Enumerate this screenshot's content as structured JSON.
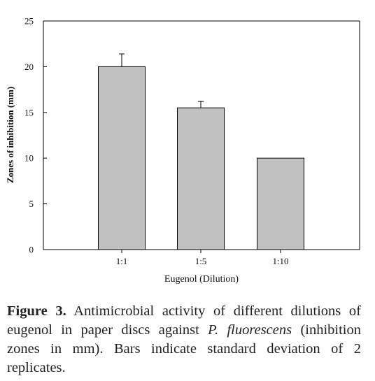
{
  "chart_data": {
    "type": "bar",
    "categories": [
      "1:1",
      "1:5",
      "1:10"
    ],
    "values": [
      20,
      15.5,
      10
    ],
    "error_plus": [
      1.4,
      0.7,
      0
    ],
    "xlabel": "Eugenol (Dilution)",
    "ylabel": "Zones of inhibition (mm)",
    "ylim": [
      0,
      25
    ],
    "yticks": [
      0,
      5,
      10,
      15,
      20,
      25
    ],
    "grid": false,
    "bar_color": "#c0c0c0"
  },
  "caption": {
    "label": "Figure 3.",
    "text_before": " Antimicrobial activity of different dilutions of eugenol in paper discs against ",
    "species": "P. fluorescens",
    "text_after": " (inhibition zones in mm). Bars indicate standard deviation of 2 replicates."
  }
}
